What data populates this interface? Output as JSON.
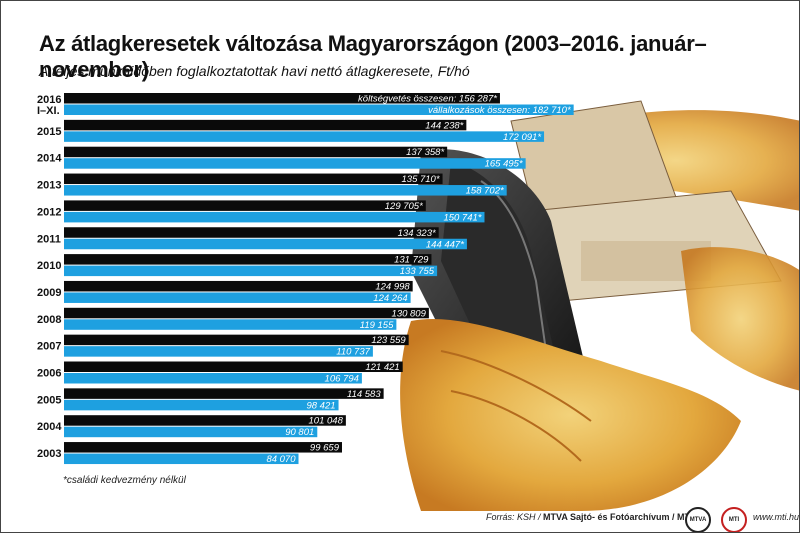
{
  "title": "Az átlagkeresetek változása Magyarországon (2003–2016. január–november)",
  "subtitle": "A teljes munkaidőben foglalkoztatottak havi nettó átlagkeresete, Ft/hó",
  "footnote": "*családi kedvezmény nélkül",
  "source": {
    "prefix": "Forrás: KSH /",
    "agency": "MTVA Sajtó- és Fotóarchívum / MTI",
    "url": "www.mti.hu",
    "logo1": "MTVA",
    "logo2": "MTI"
  },
  "colors": {
    "public": "#0a0a0a",
    "business": "#1ea0e0"
  },
  "chart_data": {
    "type": "bar",
    "orientation": "horizontal",
    "categories": [
      "2016 I–XI.",
      "2015",
      "2014",
      "2013",
      "2012",
      "2011",
      "2010",
      "2009",
      "2008",
      "2007",
      "2006",
      "2005",
      "2004",
      "2003"
    ],
    "series": [
      {
        "name": "költségvetés összesen",
        "color": "#0a0a0a",
        "values": [
          156287,
          144238,
          137358,
          135710,
          129705,
          134323,
          131729,
          124998,
          130809,
          123559,
          121421,
          114583,
          101048,
          99659
        ],
        "labels": [
          "költségvetés összesen: 156 287*",
          "144 238*",
          "137 358*",
          "135 710*",
          "129 705*",
          "134 323*",
          "131 729",
          "124 998",
          "130 809",
          "123 559",
          "121 421",
          "114 583",
          "101 048",
          "99 659"
        ]
      },
      {
        "name": "vállalkozások összesen",
        "color": "#1ea0e0",
        "values": [
          182710,
          172091,
          165495,
          158702,
          150741,
          144447,
          133755,
          124264,
          119155,
          110737,
          106794,
          98421,
          90801,
          84070
        ],
        "labels": [
          "vállalkozások összesen: 182 710*",
          "172 091*",
          "165 495*",
          "158 702*",
          "150 741*",
          "144 447*",
          "133 755",
          "124 264",
          "119 155",
          "110 737",
          "106 794",
          "98 421",
          "90 801",
          "84 070"
        ]
      }
    ],
    "xlim": [
      0,
      190000
    ],
    "grid": false,
    "legend": "none"
  }
}
